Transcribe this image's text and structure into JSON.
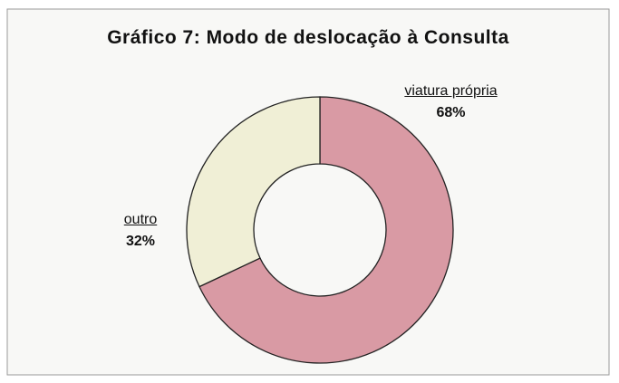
{
  "chart_data": {
    "type": "donut",
    "title": "Gráfico 7: Modo de deslocação à Consulta",
    "categories": [
      "viatura própria",
      "outro"
    ],
    "values": [
      68,
      32
    ],
    "value_labels": [
      "68%",
      "32%"
    ],
    "colors": [
      "#d99aa4",
      "#f0efd6"
    ]
  }
}
